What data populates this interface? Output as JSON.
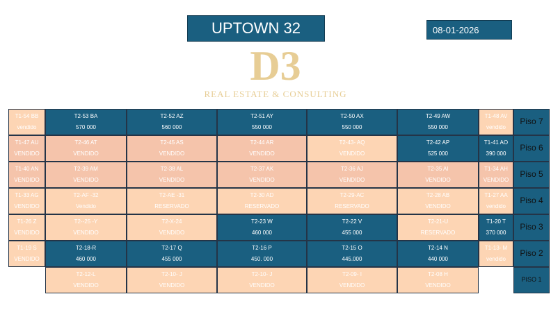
{
  "header": {
    "title": "UPTOWN 32",
    "date": "08-01-2026"
  },
  "watermark": {
    "logo": "D3",
    "text": "REAL ESTATE & CONSULTING"
  },
  "colors": {
    "available": "#1a5f80",
    "sold": "#f5c4ab",
    "reserved_or_sold_light": "#fdd5b4"
  },
  "rows": [
    {
      "floor": "Piso 7",
      "cells": [
        {
          "c": "p",
          "a": "T1-54 BB",
          "b": "vendido"
        },
        {
          "c": "b",
          "a": "T2-53 BA",
          "b": "570 000"
        },
        {
          "c": "b",
          "a": "T2-52 AZ",
          "b": "560 000"
        },
        {
          "c": "b",
          "a": "T2-51 AY",
          "b": "550 000"
        },
        {
          "c": "b",
          "a": "T2-50 AX",
          "b": "550 000"
        },
        {
          "c": "b",
          "a": "T2-49 AW",
          "b": "550 000"
        },
        {
          "c": "p",
          "a": "T1-48 AV",
          "b": "vendido"
        }
      ]
    },
    {
      "floor": "Piso 6",
      "cells": [
        {
          "c": "s",
          "a": "T1-47 AU",
          "b": "VENDIDO"
        },
        {
          "c": "s",
          "a": "T2-46 AT",
          "b": "VENDIDO"
        },
        {
          "c": "s",
          "a": "T2-45 AS",
          "b": "VENDIDO"
        },
        {
          "c": "s",
          "a": "T2-44 AR",
          "b": "VENDIDO"
        },
        {
          "c": "p",
          "a": "T2-43- AQ",
          "b": "VENDIDO"
        },
        {
          "c": "b",
          "a": "T2-42 AP",
          "b": "525 000"
        },
        {
          "c": "b",
          "a": "T1-41 AO",
          "b": "390 000"
        }
      ]
    },
    {
      "floor": "Piso 5",
      "cells": [
        {
          "c": "s",
          "a": "T1-40 AN",
          "b": "VENDIDO"
        },
        {
          "c": "s",
          "a": "T2-39 AM",
          "b": "VENDIDO"
        },
        {
          "c": "s",
          "a": "T2-38 AL",
          "b": "VENDIDO"
        },
        {
          "c": "s",
          "a": "T2-37 AK",
          "b": "VENDIDO"
        },
        {
          "c": "s",
          "a": "T2-36 AJ",
          "b": "VENDIDO"
        },
        {
          "c": "s",
          "a": "T2-35 AI",
          "b": "VENDIDO"
        },
        {
          "c": "s",
          "a": "T1-34 AH",
          "b": "VENDIDO"
        }
      ]
    },
    {
      "floor": "Piso 4",
      "cells": [
        {
          "c": "p",
          "a": "T1-33 AG",
          "b": "VENDIDO"
        },
        {
          "c": "p",
          "a": "T2-AF -32",
          "b": "Vendido"
        },
        {
          "c": "p",
          "a": "T2-AE -31",
          "b": "RESERVADO"
        },
        {
          "c": "p",
          "a": "T2-30 AD",
          "b": "RESERVADO"
        },
        {
          "c": "p",
          "a": "T2-29-AC",
          "b": "RESERVADO"
        },
        {
          "c": "p",
          "a": "T2-28 AB",
          "b": "VENDIDO"
        },
        {
          "c": "p",
          "a": "T1-27 AA",
          "b": "vendido"
        }
      ]
    },
    {
      "floor": "Piso 3",
      "cells": [
        {
          "c": "p",
          "a": "T1-26 Z",
          "b": "VENDIDO"
        },
        {
          "c": "p",
          "a": "T2--25 -Y",
          "b": "VENDIDO"
        },
        {
          "c": "p",
          "a": "T2-X-24",
          "b": "VENDIDO"
        },
        {
          "c": "b",
          "a": "T2-23 W",
          "b": "460 000"
        },
        {
          "c": "b",
          "a": "T2-22 V",
          "b": "455 000"
        },
        {
          "c": "p",
          "a": "T2-21-U",
          "b": "RESERVADO"
        },
        {
          "c": "b",
          "a": "T1-20 T",
          "b": "370 000"
        }
      ]
    },
    {
      "floor": "Piso 2",
      "cells": [
        {
          "c": "p",
          "a": "T1-19 S",
          "b": "VENDIDO"
        },
        {
          "c": "b",
          "a": "T2-18-R",
          "b": "460 000"
        },
        {
          "c": "b",
          "a": "T2-17 Q",
          "b": "455 000"
        },
        {
          "c": "b",
          "a": "T2-16 P",
          "b": "450. 000"
        },
        {
          "c": "b",
          "a": "T2-15 O",
          "b": "445.000"
        },
        {
          "c": "b",
          "a": "T2-14 N",
          "b": "440 000"
        },
        {
          "c": "p",
          "a": "T1-13- M",
          "b": "vendido"
        }
      ]
    },
    {
      "floor": "PISO 1",
      "cells": [
        {
          "c": "e",
          "a": "",
          "b": ""
        },
        {
          "c": "p",
          "a": "T2-12-L",
          "b": "VENDIDO"
        },
        {
          "c": "p",
          "a": "T2-10- J",
          "b": "VENDIDO"
        },
        {
          "c": "p",
          "a": "T2-10- J",
          "b": "VENDIDO"
        },
        {
          "c": "p",
          "a": "T2-09- I",
          "b": "VENDIDO"
        },
        {
          "c": "p",
          "a": "T2-08 H",
          "b": "VENDIDO"
        },
        {
          "c": "e",
          "a": "",
          "b": ""
        }
      ]
    }
  ]
}
